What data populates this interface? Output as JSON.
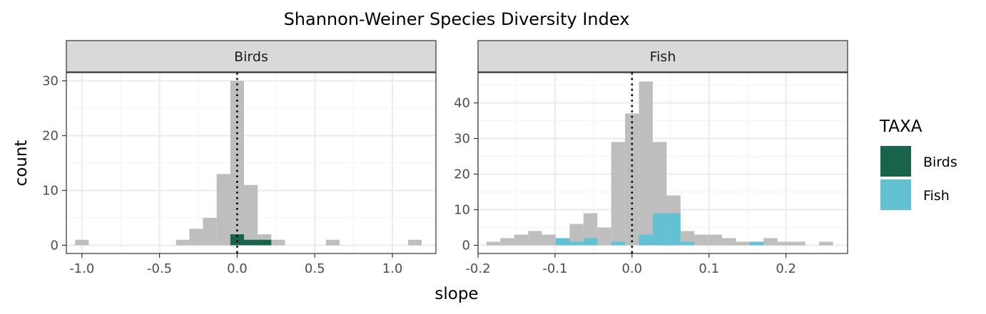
{
  "chart_data": {
    "type": "bar",
    "title": "Shannon-Weiner Species Diversity Index",
    "xlabel": "slope",
    "ylabel": "count",
    "legend": {
      "title": "TAXA",
      "position": "right",
      "entries": [
        "Birds",
        "Fish"
      ]
    },
    "colors": {
      "all": "#bebebe",
      "Birds": "#17634c",
      "Fish": "#64c1d3",
      "vline": "#000000"
    },
    "vline_x": 0,
    "panels": [
      {
        "strip": "Birds",
        "xlim": [
          -1.1,
          1.28
        ],
        "ylim": [
          -1.5,
          31.5
        ],
        "xticks": [
          -1.0,
          -0.5,
          0.0,
          0.5,
          1.0
        ],
        "xtick_labels": [
          "-1.0",
          "-0.5",
          "0.0",
          "0.5",
          "1.0"
        ],
        "yticks": [
          0,
          10,
          20,
          30
        ],
        "ytick_labels": [
          "0",
          "10",
          "20",
          "30"
        ],
        "bin_width": 0.088,
        "all": [
          [
            -1.0,
            1
          ],
          [
            -0.35,
            1
          ],
          [
            -0.264,
            3
          ],
          [
            -0.176,
            5
          ],
          [
            -0.088,
            13
          ],
          [
            0.0,
            30
          ],
          [
            0.088,
            11
          ],
          [
            0.176,
            2
          ],
          [
            0.264,
            1
          ],
          [
            0.616,
            1
          ],
          [
            1.144,
            1
          ]
        ],
        "taxa": [
          [
            0.0,
            2
          ],
          [
            0.088,
            1
          ],
          [
            0.176,
            1
          ]
        ],
        "taxa_series": "Birds"
      },
      {
        "strip": "Fish",
        "xlim": [
          -0.2,
          0.28
        ],
        "ylim": [
          -2.3,
          48.5
        ],
        "xticks": [
          -0.2,
          -0.1,
          0.0,
          0.1,
          0.2
        ],
        "xtick_labels": [
          "-0.2",
          "-0.1",
          "0.0",
          "0.1",
          "0.2"
        ],
        "yticks": [
          0,
          10,
          20,
          30,
          40
        ],
        "ytick_labels": [
          "0",
          "10",
          "20",
          "30",
          "40"
        ],
        "bin_width": 0.018,
        "all": [
          [
            -0.18,
            1
          ],
          [
            -0.162,
            2
          ],
          [
            -0.144,
            3
          ],
          [
            -0.126,
            4
          ],
          [
            -0.108,
            3
          ],
          [
            -0.09,
            2
          ],
          [
            -0.072,
            6
          ],
          [
            -0.054,
            9
          ],
          [
            -0.036,
            5
          ],
          [
            -0.018,
            29
          ],
          [
            0.0,
            37
          ],
          [
            0.018,
            46
          ],
          [
            0.036,
            29
          ],
          [
            0.054,
            14
          ],
          [
            0.072,
            4
          ],
          [
            0.09,
            3
          ],
          [
            0.108,
            3
          ],
          [
            0.126,
            2
          ],
          [
            0.144,
            1
          ],
          [
            0.162,
            1
          ],
          [
            0.18,
            2
          ],
          [
            0.198,
            1
          ],
          [
            0.216,
            1
          ],
          [
            0.252,
            1
          ]
        ],
        "taxa": [
          [
            -0.09,
            2
          ],
          [
            -0.072,
            1
          ],
          [
            -0.054,
            2
          ],
          [
            -0.018,
            1
          ],
          [
            0.018,
            3
          ],
          [
            0.036,
            9
          ],
          [
            0.054,
            9
          ],
          [
            0.072,
            1
          ],
          [
            0.162,
            1
          ]
        ],
        "taxa_series": "Fish"
      }
    ]
  }
}
